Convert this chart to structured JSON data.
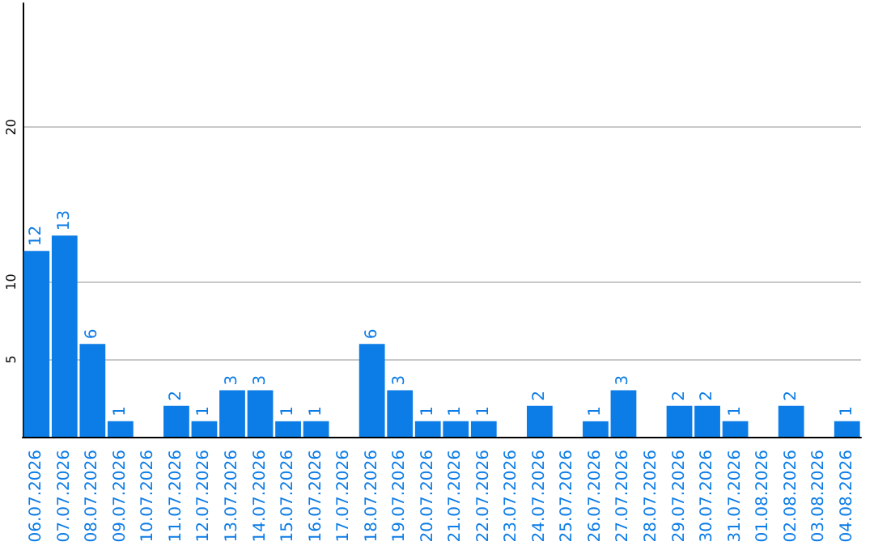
{
  "chart_data": {
    "type": "bar",
    "categories": [
      "06.07.2026",
      "07.07.2026",
      "08.07.2026",
      "09.07.2026",
      "10.07.2026",
      "11.07.2026",
      "12.07.2026",
      "13.07.2026",
      "14.07.2026",
      "15.07.2026",
      "16.07.2026",
      "17.07.2026",
      "18.07.2026",
      "19.07.2026",
      "20.07.2026",
      "21.07.2026",
      "22.07.2026",
      "23.07.2026",
      "24.07.2026",
      "25.07.2026",
      "26.07.2026",
      "27.07.2026",
      "28.07.2026",
      "29.07.2026",
      "30.07.2026",
      "31.07.2026",
      "01.08.2026",
      "02.08.2026",
      "03.08.2026",
      "04.08.2026"
    ],
    "values": [
      12,
      13,
      6,
      1,
      null,
      2,
      1,
      3,
      3,
      1,
      1,
      null,
      6,
      3,
      1,
      1,
      1,
      null,
      2,
      null,
      1,
      3,
      null,
      2,
      2,
      1,
      null,
      2,
      null,
      1
    ],
    "color": "#0c7ce6",
    "ylim": [
      0,
      28
    ],
    "yticks": [
      5,
      10,
      20
    ],
    "grid": "y",
    "data_labels": true
  }
}
